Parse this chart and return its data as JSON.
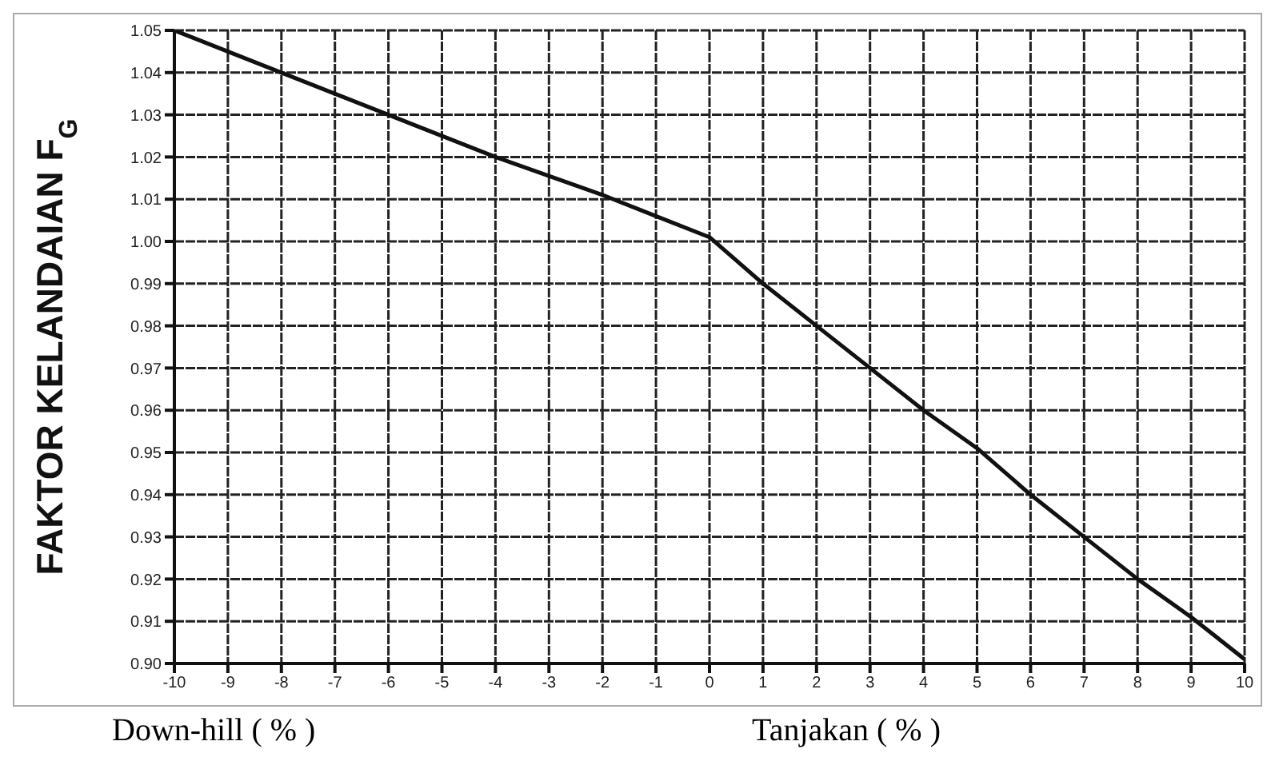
{
  "chart_data": {
    "type": "line",
    "ylabel": "FAKTOR KELANDAIAN F$_{G}$",
    "annotations": [
      "Down-hill ( % )",
      "Tanjakan ( % )"
    ],
    "x": [
      -10,
      -8,
      -6,
      -4,
      -2,
      -1,
      0,
      1,
      2,
      3,
      4,
      5,
      6,
      7,
      8,
      9,
      10
    ],
    "series": [
      {
        "color": "#111111",
        "values": [
          1.05,
          1.04,
          1.03,
          1.02,
          1.011,
          1.006,
          1.001,
          0.99,
          0.98,
          0.97,
          0.96,
          0.951,
          0.94,
          0.93,
          0.92,
          0.911,
          0.901
        ]
      }
    ],
    "xlim": [
      -10,
      10
    ],
    "xticks": [
      -10,
      -9,
      -8,
      -7,
      -6,
      -5,
      -4,
      -3,
      -2,
      -1,
      0,
      1,
      2,
      3,
      4,
      5,
      6,
      7,
      8,
      9,
      10
    ],
    "ylim": [
      0.9,
      1.05
    ],
    "yticks": [
      {
        "value": 0.9,
        "label": "0.90"
      },
      {
        "value": 0.91,
        "label": "0.91"
      },
      {
        "value": 0.92,
        "label": "0.92"
      },
      {
        "value": 0.93,
        "label": "0.93"
      },
      {
        "value": 0.94,
        "label": "0.94"
      },
      {
        "value": 0.95,
        "label": "0.95"
      },
      {
        "value": 0.96,
        "label": "0.96"
      },
      {
        "value": 0.97,
        "label": "0.97"
      },
      {
        "value": 0.98,
        "label": "0.98"
      },
      {
        "value": 0.99,
        "label": "0.99"
      },
      {
        "value": 1.0,
        "label": "1.00"
      },
      {
        "value": 1.01,
        "label": "1.01"
      },
      {
        "value": 1.02,
        "label": "1.02"
      },
      {
        "value": 1.03,
        "label": "1.03"
      },
      {
        "value": 1.04,
        "label": "1.04"
      },
      {
        "value": 1.05,
        "label": "1.05"
      }
    ],
    "grid": true,
    "marker": "none",
    "line_style": "solid"
  }
}
